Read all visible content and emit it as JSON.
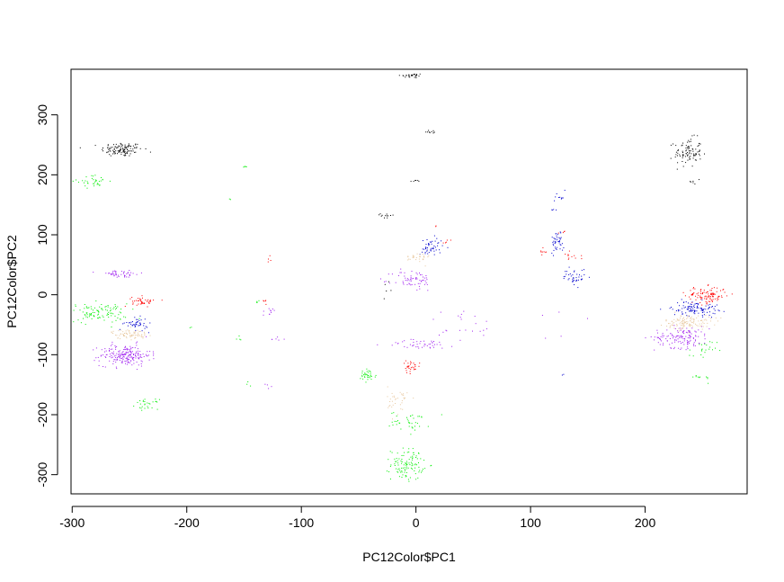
{
  "chart_data": {
    "type": "scatter",
    "title": "",
    "xlabel": "PC12Color$PC1",
    "ylabel": "PC12Color$PC2",
    "xlim": [
      -301,
      289
    ],
    "ylim": [
      -332,
      376
    ],
    "xticks": [
      -300,
      -200,
      -100,
      0,
      100,
      200
    ],
    "yticks": [
      -300,
      -200,
      -100,
      0,
      100,
      200,
      300
    ],
    "grid": false,
    "legend": "none",
    "colors": {
      "black": "#000000",
      "green": "#00ee00",
      "purple": "#a020f0",
      "red": "#ff0000",
      "blue": "#0000cd",
      "tan": "#e8c9a0"
    },
    "clusters": [
      {
        "color": "black",
        "cx": -257,
        "cy": 243,
        "sx": 9,
        "sy": 6,
        "n": 120
      },
      {
        "color": "black",
        "cx": -4,
        "cy": 366,
        "sx": 5,
        "sy": 2,
        "n": 28
      },
      {
        "color": "black",
        "cx": 13,
        "cy": 273,
        "sx": 3,
        "sy": 2,
        "n": 10
      },
      {
        "color": "black",
        "cx": -2,
        "cy": 190,
        "sx": 3,
        "sy": 1,
        "n": 6
      },
      {
        "color": "black",
        "cx": -26,
        "cy": 133,
        "sx": 4,
        "sy": 3,
        "n": 12
      },
      {
        "color": "black",
        "cx": -25,
        "cy": 15,
        "sx": 2,
        "sy": 5,
        "n": 5
      },
      {
        "color": "black",
        "cx": 237,
        "cy": 238,
        "sx": 6,
        "sy": 12,
        "n": 95
      },
      {
        "color": "black",
        "cx": 245,
        "cy": 190,
        "sx": 3,
        "sy": 3,
        "n": 6
      },
      {
        "color": "green",
        "cx": -282,
        "cy": 190,
        "sx": 7,
        "sy": 5,
        "n": 35
      },
      {
        "color": "green",
        "cx": -148,
        "cy": 215,
        "sx": 2,
        "sy": 2,
        "n": 4
      },
      {
        "color": "green",
        "cx": -163,
        "cy": 160,
        "sx": 1,
        "sy": 1,
        "n": 2
      },
      {
        "color": "green",
        "cx": -278,
        "cy": -30,
        "sx": 13,
        "sy": 8,
        "n": 110
      },
      {
        "color": "green",
        "cx": -235,
        "cy": -182,
        "sx": 5,
        "sy": 4,
        "n": 28
      },
      {
        "color": "green",
        "cx": -196,
        "cy": -55,
        "sx": 1,
        "sy": 1,
        "n": 2
      },
      {
        "color": "green",
        "cx": -155,
        "cy": -70,
        "sx": 2,
        "sy": 4,
        "n": 4
      },
      {
        "color": "green",
        "cx": -138,
        "cy": -10,
        "sx": 2,
        "sy": 2,
        "n": 4
      },
      {
        "color": "green",
        "cx": -145,
        "cy": -150,
        "sx": 3,
        "sy": 3,
        "n": 3
      },
      {
        "color": "green",
        "cx": -43,
        "cy": -135,
        "sx": 4,
        "sy": 6,
        "n": 35
      },
      {
        "color": "green",
        "cx": -5,
        "cy": -210,
        "sx": 9,
        "sy": 8,
        "n": 40
      },
      {
        "color": "green",
        "cx": -8,
        "cy": -282,
        "sx": 7,
        "sy": 13,
        "n": 110
      },
      {
        "color": "green",
        "cx": 250,
        "cy": -93,
        "sx": 6,
        "sy": 9,
        "n": 22
      },
      {
        "color": "green",
        "cx": 245,
        "cy": -138,
        "sx": 7,
        "sy": 3,
        "n": 10
      },
      {
        "color": "purple",
        "cx": -258,
        "cy": 35,
        "sx": 10,
        "sy": 3,
        "n": 45
      },
      {
        "color": "purple",
        "cx": -254,
        "cy": -100,
        "sx": 11,
        "sy": 9,
        "n": 210
      },
      {
        "color": "purple",
        "cx": -128,
        "cy": -27,
        "sx": 3,
        "sy": 4,
        "n": 10
      },
      {
        "color": "purple",
        "cx": -122,
        "cy": -73,
        "sx": 3,
        "sy": 2,
        "n": 6
      },
      {
        "color": "purple",
        "cx": -131,
        "cy": -152,
        "sx": 2,
        "sy": 2,
        "n": 4
      },
      {
        "color": "purple",
        "cx": -3,
        "cy": 25,
        "sx": 9,
        "sy": 9,
        "n": 65
      },
      {
        "color": "purple",
        "cx": 5,
        "cy": -82,
        "sx": 16,
        "sy": 4,
        "n": 45
      },
      {
        "color": "purple",
        "cx": 40,
        "cy": -50,
        "sx": 16,
        "sy": 14,
        "n": 22
      },
      {
        "color": "purple",
        "cx": 232,
        "cy": -70,
        "sx": 12,
        "sy": 9,
        "n": 140
      },
      {
        "color": "purple",
        "cx": 110,
        "cy": -60,
        "sx": 20,
        "sy": 25,
        "n": 5
      },
      {
        "color": "red",
        "cx": -238,
        "cy": -10,
        "sx": 5,
        "sy": 4,
        "n": 45
      },
      {
        "color": "red",
        "cx": -130,
        "cy": 58,
        "sx": 2,
        "sy": 3,
        "n": 4
      },
      {
        "color": "red",
        "cx": -132,
        "cy": -10,
        "sx": 1,
        "sy": 2,
        "n": 5
      },
      {
        "color": "red",
        "cx": 18,
        "cy": 115,
        "sx": 1,
        "sy": 1,
        "n": 2
      },
      {
        "color": "red",
        "cx": 27,
        "cy": 92,
        "sx": 2,
        "sy": 2,
        "n": 5
      },
      {
        "color": "red",
        "cx": -5,
        "cy": -120,
        "sx": 4,
        "sy": 5,
        "n": 30
      },
      {
        "color": "red",
        "cx": 110,
        "cy": 72,
        "sx": 2,
        "sy": 3,
        "n": 8
      },
      {
        "color": "red",
        "cx": 135,
        "cy": 66,
        "sx": 4,
        "sy": 4,
        "n": 12
      },
      {
        "color": "red",
        "cx": 128,
        "cy": 106,
        "sx": 2,
        "sy": 2,
        "n": 4
      },
      {
        "color": "red",
        "cx": 253,
        "cy": 0,
        "sx": 9,
        "sy": 7,
        "n": 110
      },
      {
        "color": "blue",
        "cx": -244,
        "cy": -48,
        "sx": 5,
        "sy": 5,
        "n": 45
      },
      {
        "color": "blue",
        "cx": 13,
        "cy": 80,
        "sx": 5,
        "sy": 8,
        "n": 50
      },
      {
        "color": "blue",
        "cx": 125,
        "cy": 160,
        "sx": 3,
        "sy": 6,
        "n": 10
      },
      {
        "color": "blue",
        "cx": 120,
        "cy": 142,
        "sx": 1,
        "sy": 2,
        "n": 4
      },
      {
        "color": "blue",
        "cx": 123,
        "cy": 90,
        "sx": 3,
        "sy": 9,
        "n": 42
      },
      {
        "color": "blue",
        "cx": 138,
        "cy": 30,
        "sx": 5,
        "sy": 7,
        "n": 40
      },
      {
        "color": "blue",
        "cx": 243,
        "cy": -22,
        "sx": 10,
        "sy": 6,
        "n": 110
      },
      {
        "color": "blue",
        "cx": 127,
        "cy": -133,
        "sx": 1,
        "sy": 1,
        "n": 2
      },
      {
        "color": "tan",
        "cx": -250,
        "cy": -65,
        "sx": 8,
        "sy": 4,
        "n": 75
      },
      {
        "color": "tan",
        "cx": 0,
        "cy": 62,
        "sx": 6,
        "sy": 5,
        "n": 30
      },
      {
        "color": "tan",
        "cx": -15,
        "cy": -175,
        "sx": 5,
        "sy": 12,
        "n": 35
      },
      {
        "color": "tan",
        "cx": 237,
        "cy": -45,
        "sx": 10,
        "sy": 6,
        "n": 120
      }
    ]
  }
}
